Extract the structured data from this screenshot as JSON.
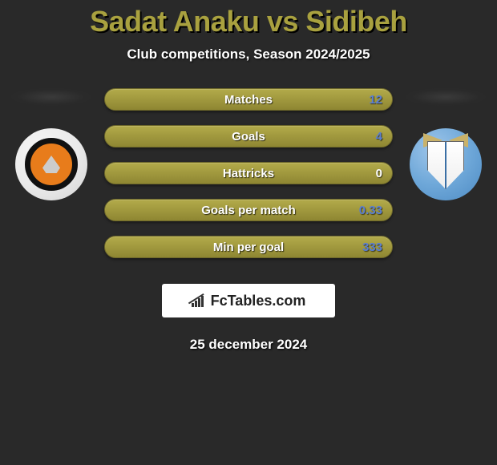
{
  "title": "Sadat Anaku vs Sidibeh",
  "subtitle": "Club competitions, Season 2024/2025",
  "date": "25 december 2024",
  "brand": "FcTables.com",
  "colors": {
    "page_bg": "#292929",
    "title_color": "#a9a13f",
    "bar_top": "#b3ab4a",
    "bar_bottom": "#8e8632",
    "value_color": "#5a7ed1",
    "value_zero_color": "#ffffff"
  },
  "bars": [
    {
      "label": "Matches",
      "value": "12"
    },
    {
      "label": "Goals",
      "value": "4"
    },
    {
      "label": "Hattricks",
      "value": "0"
    },
    {
      "label": "Goals per match",
      "value": "0.33"
    },
    {
      "label": "Min per goal",
      "value": "333"
    }
  ],
  "sides": {
    "left": {
      "team": "Dundee United"
    },
    "right": {
      "team": "St Johnstone"
    }
  }
}
